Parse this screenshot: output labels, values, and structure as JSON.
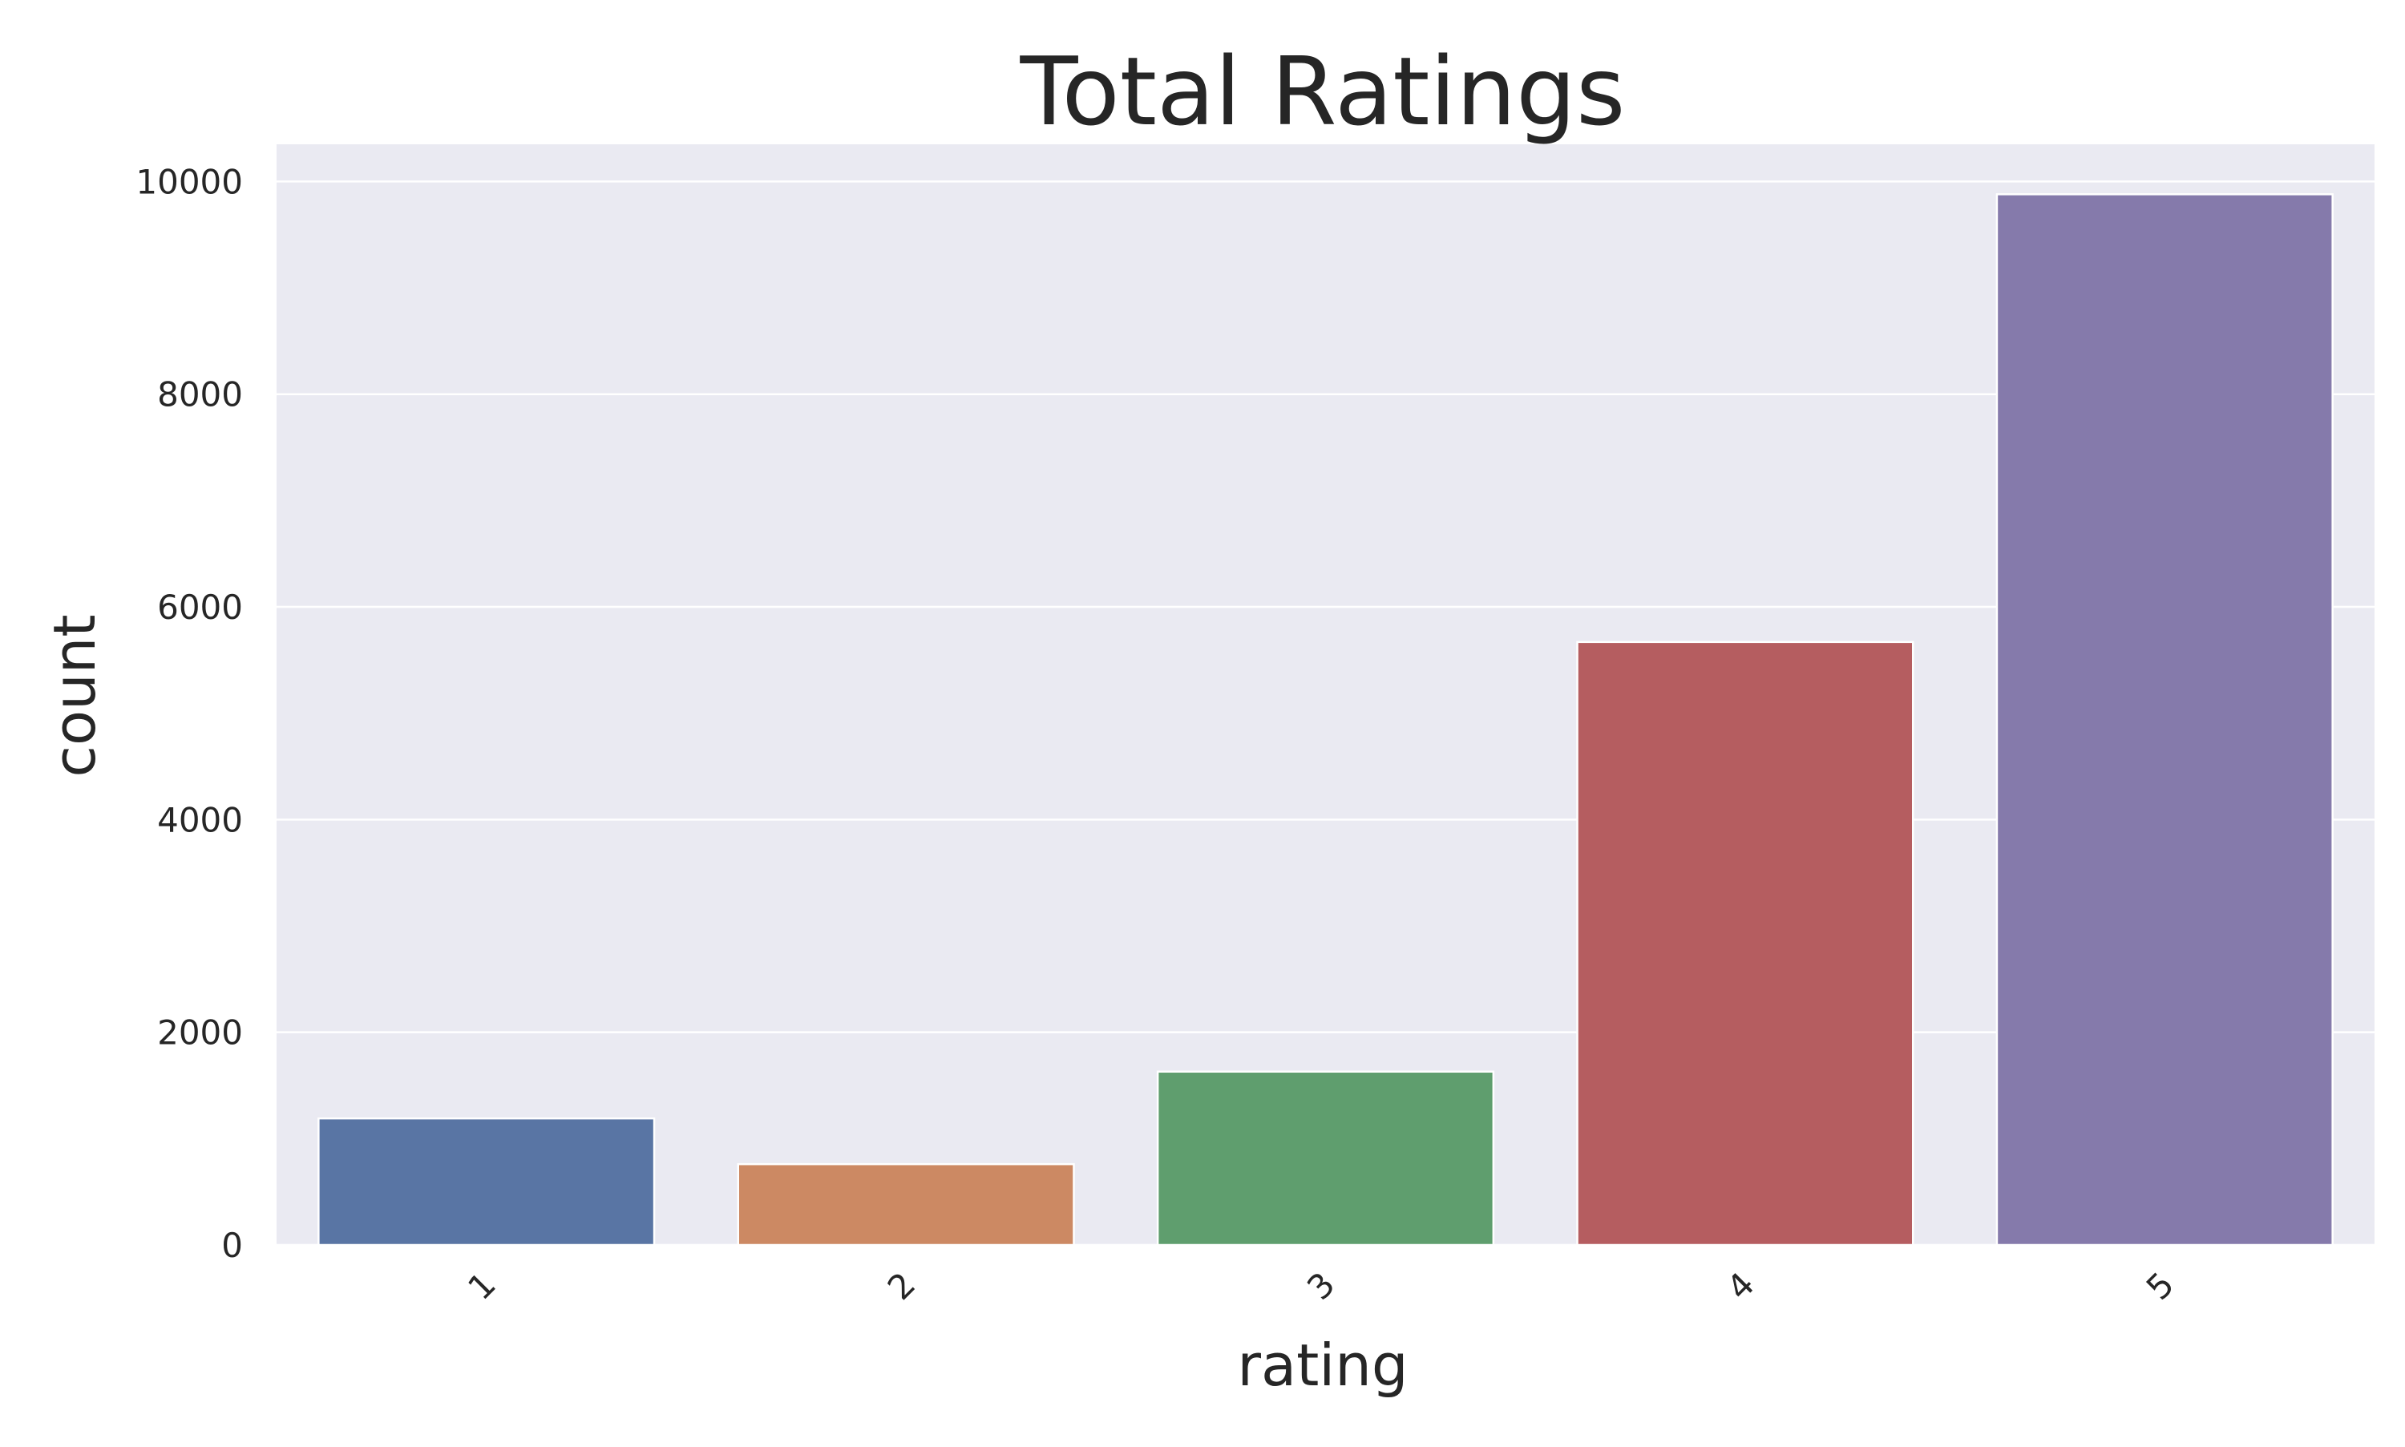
{
  "chart_data": {
    "type": "bar",
    "title": "Total Ratings",
    "xlabel": "rating",
    "ylabel": "count",
    "categories": [
      "1",
      "2",
      "3",
      "4",
      "5"
    ],
    "values": [
      1190,
      760,
      1630,
      5670,
      9880
    ],
    "colors": [
      "#5975a4",
      "#cc8963",
      "#5f9e6e",
      "#b55d60",
      "#857aab"
    ],
    "ylim": [
      0,
      10350
    ],
    "yticks": [
      0,
      2000,
      4000,
      6000,
      8000,
      10000
    ],
    "ytick_labels": [
      "0",
      "2000",
      "4000",
      "6000",
      "8000",
      "10000"
    ],
    "grid": true,
    "background": "#eaeaf2",
    "xtick_rotation": 45
  }
}
